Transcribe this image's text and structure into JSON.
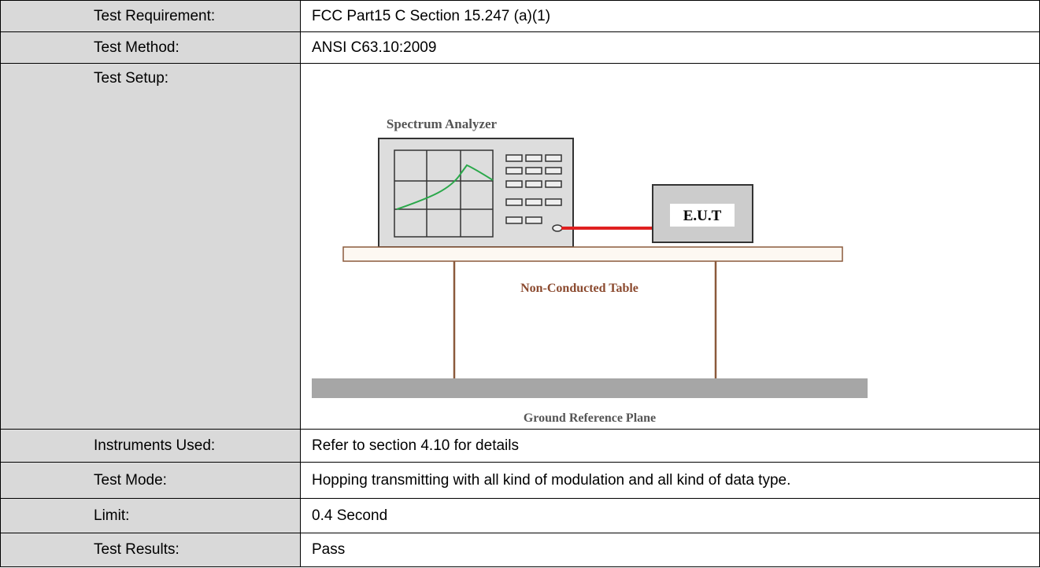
{
  "table": {
    "rows": [
      {
        "label": "Test Requirement:",
        "value": "FCC Part15 C Section 15.247 (a)(1)"
      },
      {
        "label": "Test Method:",
        "value": "ANSI C63.10:2009"
      },
      {
        "label": "Test Setup:",
        "diagram": {
          "analyzer_label": "Spectrum Analyzer",
          "eut_label": "E.U.T",
          "table_label": "Non-Conducted Table",
          "ground_label": "Ground Reference Plane"
        }
      },
      {
        "label": "Instruments Used:",
        "value": "Refer to section 4.10 for details"
      },
      {
        "label": "Test Mode:",
        "value": "Hopping transmitting with all kind of modulation and all kind of data type."
      },
      {
        "label": "Limit:",
        "value": "0.4 Second"
      },
      {
        "label": "Test Results:",
        "value": "Pass"
      }
    ]
  }
}
